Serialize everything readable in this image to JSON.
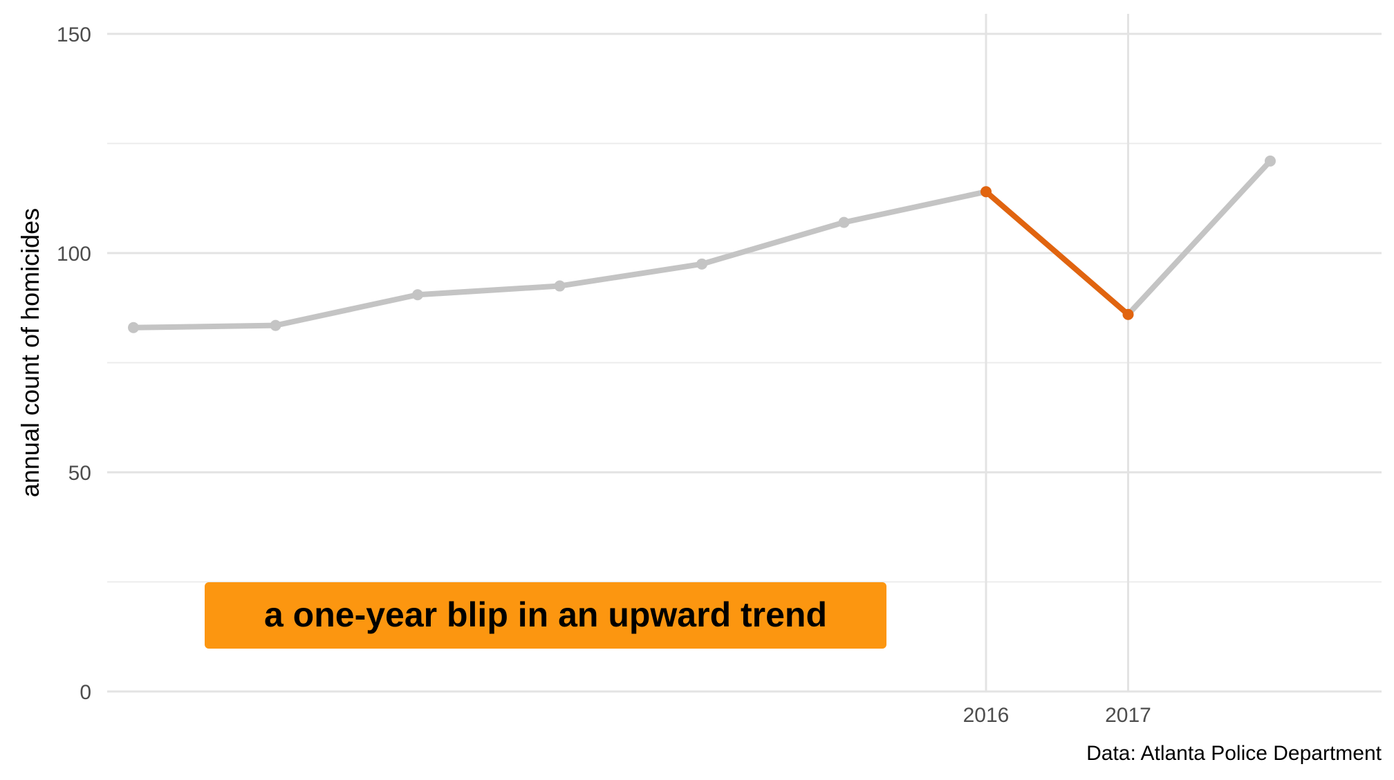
{
  "chart_data": {
    "type": "line",
    "title": "",
    "xlabel": "",
    "ylabel": "annual count of homicides",
    "ylim": [
      0,
      150
    ],
    "yticks": [
      0,
      50,
      100,
      150
    ],
    "x": [
      2010,
      2011,
      2012,
      2013,
      2014,
      2015,
      2016,
      2017,
      2018
    ],
    "xtick_labels": [
      "2016",
      "2017"
    ],
    "xtick_values": [
      2016,
      2017
    ],
    "xlim": [
      2009.8,
      2018.8
    ],
    "series": [
      {
        "values": [
          83,
          83.5,
          90.5,
          92.5,
          97.5,
          107,
          114,
          86,
          121
        ],
        "color": "#c4c4c4"
      }
    ],
    "highlight": {
      "from": 2016,
      "to": 2017,
      "color": "#e1640f"
    },
    "annotation": {
      "text": "a one-year blip in an upward trend",
      "background": "#fc9610"
    },
    "caption": "Data: Atlanta Police Department",
    "grid": true
  }
}
